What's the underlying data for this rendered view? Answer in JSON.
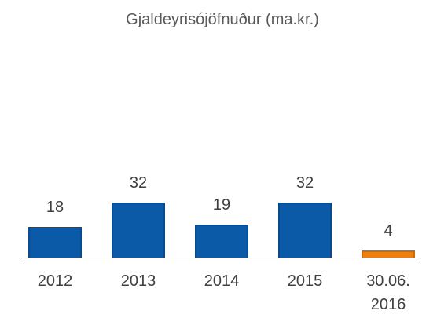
{
  "chart_data": {
    "type": "bar",
    "title": "Gjaldeyrisójöfnuður (ma.kr.)",
    "categories": [
      "2012",
      "2013",
      "2014",
      "2015",
      "30.06. 2016"
    ],
    "values": [
      18,
      32,
      19,
      32,
      4
    ],
    "colors": [
      "#0a5aa8",
      "#0a5aa8",
      "#0a5aa8",
      "#0a5aa8",
      "#f07f09"
    ]
  }
}
